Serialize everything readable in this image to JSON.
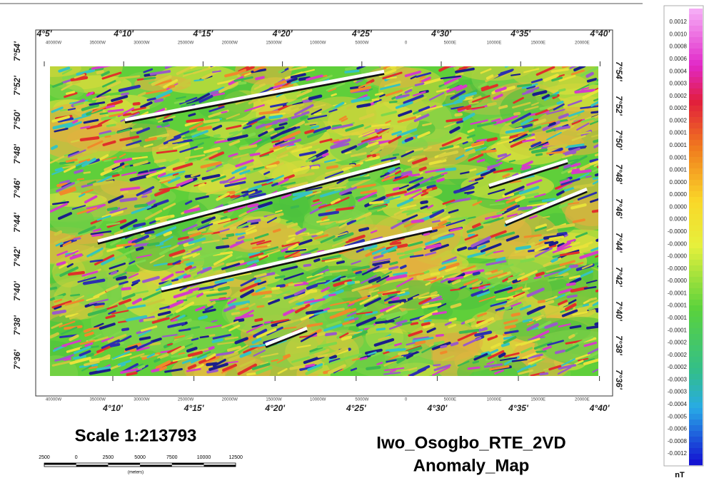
{
  "map": {
    "top_longitudes": [
      "4°5'",
      "4°10'",
      "4°15'",
      "4°20'",
      "4°25'",
      "4°30'",
      "4°35'",
      "4°40'"
    ],
    "bottom_longitudes": [
      "4°10'",
      "4°15'",
      "4°20'",
      "4°25'",
      "4°30'",
      "4°35'",
      "4°40'"
    ],
    "eastings": [
      "40000W",
      "35000W",
      "30000W",
      "25000W",
      "20000W",
      "15000W",
      "10000W",
      "5000W",
      "0",
      "5000E",
      "10000E",
      "15000E",
      "20000E"
    ],
    "latitudes": [
      "7°54'",
      "7°52'",
      "7°50'",
      "7°48'",
      "7°46'",
      "7°44'",
      "7°42'",
      "7°40'",
      "7°38'",
      "7°36'"
    ]
  },
  "scale": {
    "title": "Scale 1:213793",
    "bar_labels": [
      "2500",
      "0",
      "2500",
      "5000",
      "7500",
      "10000",
      "12500"
    ],
    "unit": "(meters)"
  },
  "title": [
    "Iwo_Osogbo_RTE_2VD",
    "Anomaly_Map"
  ],
  "colorbar": {
    "labels": [
      "0.0012",
      "0.0010",
      "0.0008",
      "0.0006",
      "0.0004",
      "0.0003",
      "0.0002",
      "0.0002",
      "0.0002",
      "0.0001",
      "0.0001",
      "0.0001",
      "0.0001",
      "0.0000",
      "0.0000",
      "0.0000",
      "0.0000",
      "-0.0000",
      "-0.0000",
      "-0.0000",
      "-0.0000",
      "-0.0000",
      "-0.0001",
      "-0.0001",
      "-0.0001",
      "-0.0001",
      "-0.0002",
      "-0.0002",
      "-0.0002",
      "-0.0003",
      "-0.0003",
      "-0.0004",
      "-0.0005",
      "-0.0006",
      "-0.0008",
      "-0.0012"
    ],
    "unit": "nT"
  }
}
